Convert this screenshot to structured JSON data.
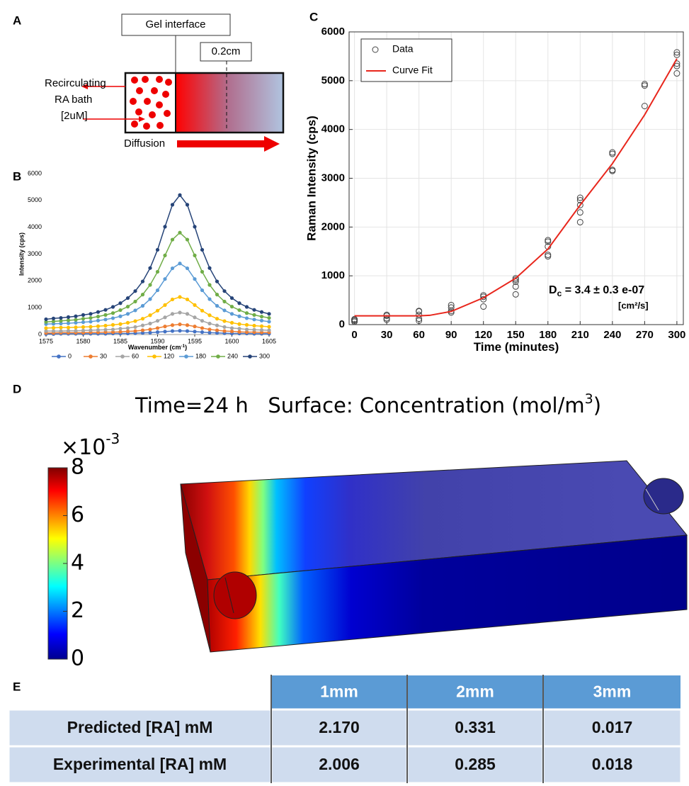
{
  "panel_labels": [
    "A",
    "B",
    "C",
    "D",
    "E"
  ],
  "diagram": {
    "gel_interface": "Gel interface",
    "distance": "0.2cm",
    "bath": [
      "Recirculating",
      "RA bath",
      "[2uM]"
    ],
    "diffusion": "Diffusion"
  },
  "chart_data": [
    {
      "type": "line",
      "ylabel": "Intensity (cps)",
      "xlabel": "Wavenumber (cm",
      "xlabel_superscript": "-1",
      "xlabel_suffix": ")",
      "x": [
        1575,
        1576,
        1577,
        1578,
        1579,
        1580,
        1581,
        1582,
        1583,
        1584,
        1585,
        1586,
        1587,
        1588,
        1589,
        1590,
        1591,
        1592,
        1593,
        1594,
        1595,
        1596,
        1597,
        1598,
        1599,
        1600,
        1601,
        1602,
        1603,
        1604,
        1605
      ],
      "xlim": [
        1575,
        1605
      ],
      "xticks": [
        1575,
        1580,
        1585,
        1590,
        1595,
        1600,
        1605
      ],
      "ylim": [
        0,
        6000
      ],
      "yticks": [
        0,
        1000,
        2000,
        3000,
        4000,
        5000,
        6000
      ],
      "legend": "bottom",
      "series": [
        {
          "name": "0",
          "color": "#4472c4",
          "values": [
            20,
            20,
            30,
            30,
            30,
            30,
            30,
            30,
            30,
            40,
            40,
            40,
            50,
            60,
            70,
            90,
            110,
            130,
            140,
            130,
            110,
            90,
            70,
            60,
            50,
            40,
            40,
            40,
            30,
            30,
            30
          ]
        },
        {
          "name": "30",
          "color": "#ed7d31",
          "values": [
            60,
            60,
            70,
            70,
            70,
            70,
            80,
            80,
            90,
            90,
            100,
            120,
            130,
            160,
            190,
            240,
            300,
            350,
            380,
            350,
            300,
            240,
            190,
            160,
            130,
            120,
            100,
            90,
            90,
            80,
            80
          ]
        },
        {
          "name": "60",
          "color": "#a5a5a5",
          "values": [
            130,
            130,
            130,
            140,
            140,
            150,
            160,
            170,
            180,
            190,
            220,
            240,
            280,
            340,
            410,
            510,
            640,
            770,
            820,
            770,
            640,
            510,
            410,
            340,
            280,
            240,
            220,
            190,
            180,
            170,
            160
          ]
        },
        {
          "name": "120",
          "color": "#ffc000",
          "values": [
            240,
            250,
            260,
            260,
            270,
            280,
            290,
            310,
            330,
            360,
            390,
            440,
            500,
            590,
            720,
            890,
            1100,
            1310,
            1400,
            1310,
            1100,
            890,
            720,
            590,
            500,
            440,
            390,
            360,
            330,
            310,
            290
          ]
        },
        {
          "name": "180",
          "color": "#5b9bd5",
          "values": [
            390,
            400,
            410,
            420,
            440,
            460,
            480,
            520,
            560,
            610,
            680,
            770,
            900,
            1070,
            1320,
            1650,
            2070,
            2470,
            2650,
            2470,
            2070,
            1650,
            1320,
            1070,
            900,
            770,
            680,
            610,
            560,
            520,
            480
          ]
        },
        {
          "name": "240",
          "color": "#70ad47",
          "values": [
            470,
            490,
            510,
            530,
            550,
            590,
            620,
            670,
            730,
            800,
            910,
            1040,
            1230,
            1490,
            1850,
            2340,
            2950,
            3540,
            3800,
            3540,
            2950,
            2340,
            1850,
            1490,
            1230,
            1040,
            910,
            800,
            730,
            670,
            620
          ]
        },
        {
          "name": "300",
          "color": "#264478",
          "values": [
            570,
            600,
            620,
            650,
            680,
            730,
            770,
            840,
            920,
            1030,
            1170,
            1360,
            1620,
            1980,
            2480,
            3160,
            4020,
            4840,
            5200,
            4840,
            4020,
            3160,
            2480,
            1980,
            1620,
            1360,
            1170,
            1030,
            920,
            840,
            770
          ]
        }
      ]
    },
    {
      "type": "scatter",
      "ylabel": "Raman Intensity (cps)",
      "xlabel": "Time (minutes)",
      "xlim": [
        -5,
        306
      ],
      "xticks": [
        0,
        30,
        60,
        90,
        120,
        150,
        180,
        210,
        240,
        270,
        300
      ],
      "ylim": [
        0,
        6000
      ],
      "yticks": [
        0,
        1000,
        2000,
        3000,
        4000,
        5000,
        6000
      ],
      "grid": true,
      "legend": "upper left",
      "annotation": {
        "symbol": "D",
        "subscript": "c",
        "text": " = 3.4 ± 0.3 e-07",
        "units": "[cm²/s]"
      },
      "series": [
        {
          "name": "Data",
          "type": "scatter",
          "color": "#444444",
          "x": [
            0,
            0,
            0,
            0,
            30,
            30,
            30,
            30,
            60,
            60,
            60,
            60,
            60,
            90,
            90,
            90,
            90,
            120,
            120,
            120,
            120,
            150,
            150,
            150,
            150,
            150,
            180,
            180,
            180,
            180,
            180,
            210,
            210,
            210,
            210,
            210,
            240,
            240,
            240,
            240,
            270,
            270,
            270,
            300,
            300,
            300,
            300,
            300
          ],
          "y": [
            60,
            80,
            100,
            110,
            100,
            130,
            180,
            200,
            80,
            120,
            200,
            270,
            280,
            250,
            280,
            350,
            400,
            370,
            520,
            570,
            600,
            620,
            780,
            880,
            920,
            950,
            1400,
            1430,
            1600,
            1700,
            1730,
            2100,
            2300,
            2450,
            2550,
            2600,
            3150,
            3170,
            3500,
            3530,
            4480,
            4900,
            4930,
            5150,
            5300,
            5350,
            5530,
            5580
          ]
        },
        {
          "name": "Curve Fit",
          "type": "line",
          "color": "#e8261c",
          "x": [
            0,
            30,
            60,
            70,
            90,
            120,
            150,
            180,
            210,
            240,
            270,
            300
          ],
          "y": [
            180,
            180,
            180,
            190,
            270,
            550,
            950,
            1550,
            2450,
            3300,
            4300,
            5450
          ]
        }
      ]
    }
  ],
  "simulation": {
    "title": "Time=24 h   Surface: Concentration (mol/m",
    "title_superscript": "3",
    "title_suffix": ")",
    "colorbar": {
      "multiplier": "×10",
      "multiplier_exponent": "-3",
      "lim": [
        0,
        8
      ],
      "ticks": [
        0,
        2,
        4,
        6,
        8
      ]
    }
  },
  "table": {
    "header": [
      "1mm",
      "2mm",
      "3mm"
    ],
    "rows": [
      [
        "Predicted [RA] mM",
        "2.170",
        "0.331",
        "0.017"
      ],
      [
        "Experimental [RA] mM",
        "2.006",
        "0.285",
        "0.018"
      ]
    ]
  }
}
